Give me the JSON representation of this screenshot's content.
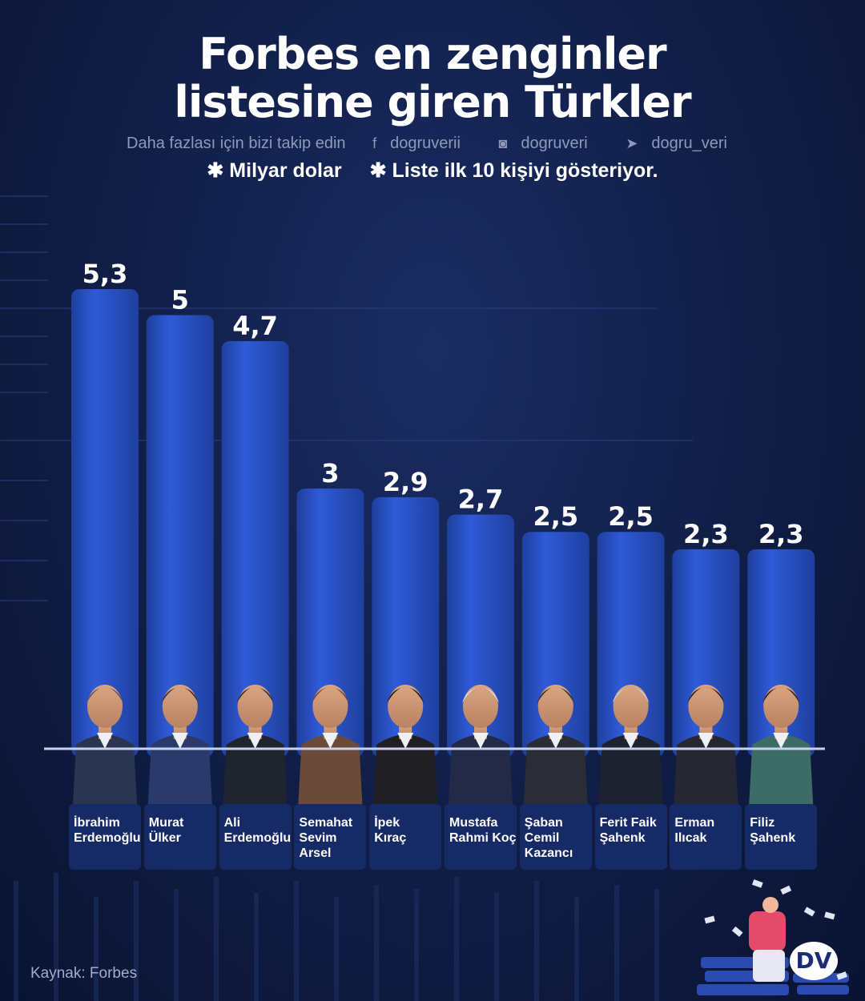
{
  "title_line1": "Forbes en zenginler",
  "title_line2": "listesine giren Türkler",
  "follow_text": "Daha fazlası için bizi takip edin",
  "social": {
    "facebook": "dogruverii",
    "instagram": "dogruveri",
    "twitter": "dogru_veri"
  },
  "notes": [
    "✱ Milyar dolar",
    "✱ Liste ilk 10 kişiyi gösteriyor."
  ],
  "source": "Kaynak: Forbes",
  "logo_text": "DV",
  "colors": {
    "bar": "#2f5bd8",
    "bar_dark": "#1f3f9e",
    "card": "#162a66",
    "background": "#101d45"
  },
  "chart_data": {
    "type": "bar",
    "title": "Forbes en zenginler listesine giren Türkler",
    "unit": "Milyar dolar",
    "categories": [
      "İbrahim Erdemoğlu",
      "Murat Ülker",
      "Ali Erdemoğlu",
      "Semahat Sevim Arsel",
      "İpek Kıraç",
      "Mustafa Rahmi Koç",
      "Şaban Cemil Kazancı",
      "Ferit Faik Şahenk",
      "Erman Ilıcak",
      "Filiz Şahenk"
    ],
    "name_lines": [
      [
        "İbrahim",
        "Erdemoğlu"
      ],
      [
        "Murat",
        "Ülker"
      ],
      [
        "Ali",
        "Erdemoğlu"
      ],
      [
        "Semahat",
        "Sevim",
        "Arsel"
      ],
      [
        "İpek",
        "Kıraç"
      ],
      [
        "Mustafa",
        "Rahmi Koç"
      ],
      [
        "Şaban",
        "Cemil",
        "Kazancı"
      ],
      [
        "Ferit Faik",
        "Şahenk"
      ],
      [
        "Erman",
        "Ilıcak"
      ],
      [
        "Filiz",
        "Şahenk"
      ]
    ],
    "values": [
      5.3,
      5,
      4.7,
      3,
      2.9,
      2.7,
      2.5,
      2.5,
      2.3,
      2.3
    ],
    "value_labels": [
      "5,3",
      "5",
      "4,7",
      "3",
      "2,9",
      "2,7",
      "2,5",
      "2,5",
      "2,3",
      "2,3"
    ],
    "ylim": [
      0,
      5.3
    ]
  }
}
